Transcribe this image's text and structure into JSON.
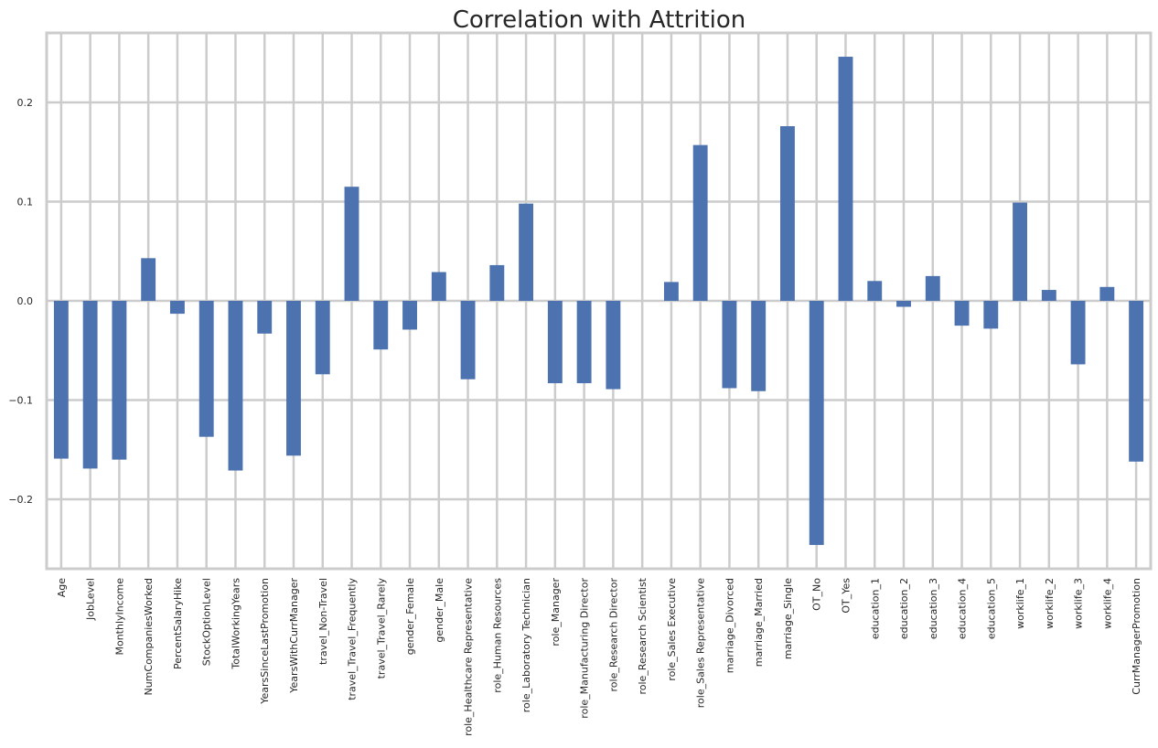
{
  "chart_data": {
    "type": "bar",
    "title": "Correlation with Attrition",
    "xlabel": "",
    "ylabel": "",
    "ylim": [
      -0.27,
      0.27
    ],
    "yticks": [
      -0.2,
      -0.1,
      0.0,
      0.1,
      0.2
    ],
    "ytick_labels": [
      "−0.2",
      "−0.1",
      "0.0",
      "0.1",
      "0.2"
    ],
    "grid": true,
    "bar_color": "#4c72b0",
    "categories": [
      "Age",
      "JobLevel",
      "MonthlyIncome",
      "NumCompaniesWorked",
      "PercentSalaryHike",
      "StockOptionLevel",
      "TotalWorkingYears",
      "YearsSinceLastPromotion",
      "YearsWithCurrManager",
      "travel_Non-Travel",
      "travel_Travel_Frequently",
      "travel_Travel_Rarely",
      "gender_Female",
      "gender_Male",
      "role_Healthcare Representative",
      "role_Human Resources",
      "role_Laboratory Technician",
      "role_Manager",
      "role_Manufacturing Director",
      "role_Research Director",
      "role_Research Scientist",
      "role_Sales Executive",
      "role_Sales Representative",
      "marriage_Divorced",
      "marriage_Married",
      "marriage_Single",
      "OT_No",
      "OT_Yes",
      "education_1",
      "education_2",
      "education_3",
      "education_4",
      "education_5",
      "worklife_1",
      "worklife_2",
      "worklife_3",
      "worklife_4",
      "CurrManagerPromotion"
    ],
    "values": [
      -0.159,
      -0.169,
      -0.16,
      0.043,
      -0.013,
      -0.137,
      -0.171,
      -0.033,
      -0.156,
      -0.074,
      0.115,
      -0.049,
      -0.029,
      0.029,
      -0.079,
      0.036,
      0.098,
      -0.083,
      -0.083,
      -0.089,
      0.0,
      0.019,
      0.157,
      -0.088,
      -0.091,
      0.176,
      -0.246,
      0.246,
      0.02,
      -0.006,
      0.025,
      -0.025,
      -0.028,
      0.099,
      0.011,
      -0.064,
      0.014,
      -0.162
    ]
  }
}
